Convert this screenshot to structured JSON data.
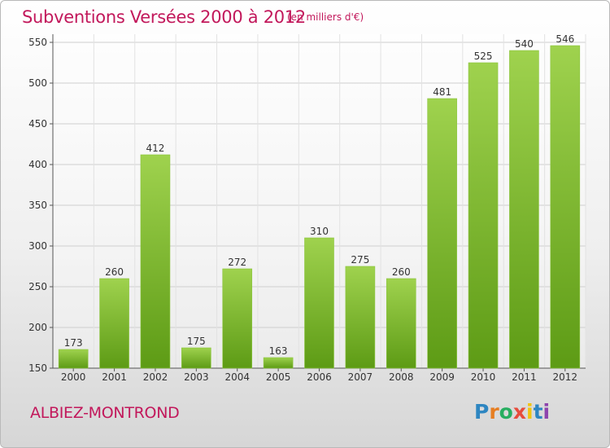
{
  "title": "Subventions Versées 2000 à 2012",
  "unit_note": "(en milliers d'€)",
  "commune": "ALBIEZ-MONTROND",
  "logo": {
    "letters": [
      "P",
      "r",
      "o",
      "x",
      "i",
      "t",
      "i"
    ],
    "colors": [
      "#2e86c1",
      "#e67e22",
      "#27ae60",
      "#e74c3c",
      "#f1c40f",
      "#2e86c1",
      "#8e44ad"
    ]
  },
  "colors": {
    "bar_top": "#9fd24e",
    "bar_bottom": "#5d9b15",
    "accent": "#c2185b"
  },
  "chart_data": {
    "type": "bar",
    "categories": [
      "2000",
      "2001",
      "2002",
      "2003",
      "2004",
      "2005",
      "2006",
      "2007",
      "2008",
      "2009",
      "2010",
      "2011",
      "2012"
    ],
    "values": [
      173,
      260,
      412,
      175,
      272,
      163,
      310,
      275,
      260,
      481,
      525,
      540,
      546
    ],
    "data_labels": [
      "173",
      "260",
      "412",
      "175",
      "272",
      "163",
      "310",
      "275",
      "260",
      "481",
      "525",
      "540",
      "546"
    ],
    "yticks": [
      150,
      200,
      250,
      300,
      350,
      400,
      450,
      500,
      550
    ],
    "ytick_labels": [
      "150",
      "200",
      "250",
      "300",
      "350",
      "400",
      "450",
      "500",
      "550"
    ],
    "ylim": [
      150,
      560
    ],
    "grid": true
  }
}
